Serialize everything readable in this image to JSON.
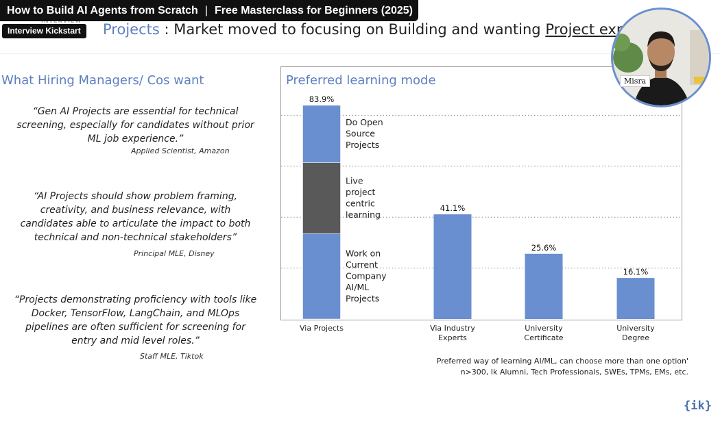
{
  "video": {
    "title": "How to Build AI Agents from Scratch",
    "subtitle": "Free Masterclass for Beginners (2025)",
    "separator": "|",
    "channel_badge": "Interview Kickstart",
    "ghost_logo": "INTERVIEW"
  },
  "slide": {
    "header_keyword": "Projects",
    "header_middle": " : Market moved to focusing on Building and wanting ",
    "header_underlined": "Project exp",
    "left_heading": "What Hiring Managers/ Cos want",
    "quotes": [
      {
        "text": "“Gen AI Projects are essential for technical screening, especially for candidates without prior ML job experience.”",
        "attribution": "Applied Scientist, Amazon"
      },
      {
        "text": "“AI Projects should show problem framing, creativity, and business relevance, with candidates able to articulate the impact to both technical and non-technical stakeholders”",
        "attribution": "Principal MLE, Disney"
      },
      {
        "text": "“Projects demonstrating proficiency with tools like Docker, TensorFlow, LangChain, and MLOps pipelines are often sufficient for screening for entry and mid level roles.”",
        "attribution": "Staff MLE, Tiktok"
      }
    ],
    "footnote_line1": "Preferred way of learning AI/ML, can choose more than one option'",
    "footnote_line2": "n>300, Ik Alumni, Tech Professionals, SWEs, TPMs, EMs, etc.",
    "logo": "{ik}"
  },
  "webcam": {
    "name": "Misra"
  },
  "colors": {
    "accent": "#5b7fc0",
    "bar_blue": "#6a8fd0",
    "bar_dark": "#595959"
  },
  "chart_data": {
    "type": "bar",
    "title": "Preferred learning mode",
    "categories": [
      "Via Projects",
      "Via Industry Experts",
      "University Certificate",
      "University Degree"
    ],
    "values": [
      83.9,
      41.1,
      25.6,
      16.1
    ],
    "value_labels": [
      "83.9%",
      "41.1%",
      "25.6%",
      "16.1%"
    ],
    "stacked_first_bar": [
      {
        "name": "Work on Current Company AI/ML Projects",
        "value": 33.5,
        "color": "#6a8fd0"
      },
      {
        "name": "Live project centric learning",
        "value": 27.9,
        "color": "#595959"
      },
      {
        "name": "Do Open Source Projects",
        "value": 22.5,
        "color": "#6a8fd0"
      }
    ],
    "ylim": [
      0,
      100
    ],
    "grid": "dotted horizontal",
    "legend": "inline, right of first bar"
  }
}
